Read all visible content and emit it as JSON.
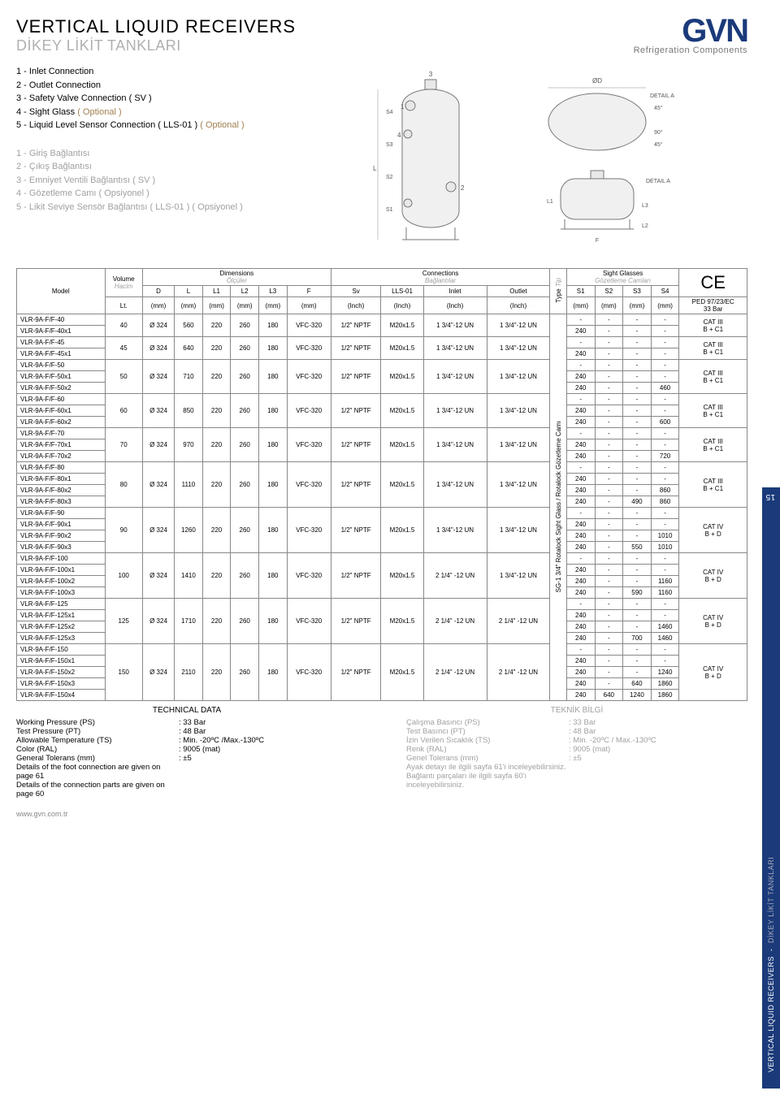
{
  "title_en": "VERTICAL LIQUID RECEIVERS",
  "title_tr": "DİKEY LİKİT TANKLARI",
  "logo_text": "GVN",
  "logo_sub": "Refrigeration Components",
  "conn_en": [
    "1 - Inlet Connection",
    "2 - Outlet Connection",
    "3 - Safety Valve Connection ( SV )",
    "4 - Sight Glass  ( Optional )",
    "5 - Liquid Level Sensor Connection ( LLS-01 )  ( Optional )"
  ],
  "conn_tr": [
    "1 - Giriş Bağlantısı",
    "2 - Çıkış Bağlantısı",
    "3 - Emniyet Ventili Bağlantısı ( SV )",
    "4 - Gözetleme Camı ( Opsiyonel )",
    "5 - Likit Seviye Sensör Bağlantısı ( LLS-01 ) ( Opsiyonel )"
  ],
  "hdr": {
    "model": "Model",
    "vol": "Volume",
    "vol_tr": "Hacim",
    "vol_u": "Lt.",
    "dim": "Dimensions",
    "dim_tr": "Ölçüler",
    "conn": "Connections",
    "conn_tr": "Bağlantılar",
    "type": "Type",
    "type_tr": "Tip",
    "sg": "Sight Glasses",
    "sg_tr": "Gözetleme Camları",
    "ce": "CE",
    "D": "D",
    "L": "L",
    "L1": "L1",
    "L2": "L2",
    "L3": "L3",
    "F": "F",
    "Sv": "Sv",
    "LLS": "LLS-01",
    "Inlet": "Inlet",
    "Outlet": "Outlet",
    "S1": "S1",
    "S2": "S2",
    "S3": "S3",
    "S4": "S4",
    "mm": "(mm)",
    "inch": "(Inch)",
    "ped": "PED 97/23/EC",
    "bar33": "33 Bar"
  },
  "type_label": "SG-1 3/4\" Rotalock Sight Glass / Rotalock Gözetleme Camı",
  "groups": [
    {
      "vol": "40",
      "D": "Ø 324",
      "L": "560",
      "L1": "220",
      "L2": "260",
      "L3": "180",
      "F": "VFC-320",
      "Sv": "1/2\" NPTF",
      "LLS": "M20x1.5",
      "In": "1 3/4\"-12 UN",
      "Out": "1 3/4\"-12 UN",
      "CE": "CAT III\nB + C1",
      "rows": [
        {
          "m": "VLR-9A-F/F-40",
          "s": [
            "-",
            "-",
            "-",
            "-"
          ]
        },
        {
          "m": "VLR-9A-F/F-40x1",
          "s": [
            "240",
            "-",
            "-",
            "-"
          ]
        }
      ]
    },
    {
      "vol": "45",
      "D": "Ø 324",
      "L": "640",
      "L1": "220",
      "L2": "260",
      "L3": "180",
      "F": "VFC-320",
      "Sv": "1/2\" NPTF",
      "LLS": "M20x1.5",
      "In": "1 3/4\"-12 UN",
      "Out": "1 3/4\"-12 UN",
      "CE": "CAT III\nB + C1",
      "rows": [
        {
          "m": "VLR-9A-F/F-45",
          "s": [
            "-",
            "-",
            "-",
            "-"
          ]
        },
        {
          "m": "VLR-9A-F/F-45x1",
          "s": [
            "240",
            "-",
            "-",
            "-"
          ]
        }
      ]
    },
    {
      "vol": "50",
      "D": "Ø 324",
      "L": "710",
      "L1": "220",
      "L2": "260",
      "L3": "180",
      "F": "VFC-320",
      "Sv": "1/2\" NPTF",
      "LLS": "M20x1.5",
      "In": "1 3/4\"-12 UN",
      "Out": "1 3/4\"-12 UN",
      "CE": "CAT III\nB + C1",
      "rows": [
        {
          "m": "VLR-9A-F/F-50",
          "s": [
            "-",
            "-",
            "-",
            "-"
          ]
        },
        {
          "m": "VLR-9A-F/F-50x1",
          "s": [
            "240",
            "-",
            "-",
            "-"
          ]
        },
        {
          "m": "VLR-9A-F/F-50x2",
          "s": [
            "240",
            "-",
            "-",
            "460"
          ]
        }
      ]
    },
    {
      "vol": "60",
      "D": "Ø 324",
      "L": "850",
      "L1": "220",
      "L2": "260",
      "L3": "180",
      "F": "VFC-320",
      "Sv": "1/2\" NPTF",
      "LLS": "M20x1.5",
      "In": "1 3/4\"-12 UN",
      "Out": "1 3/4\"-12 UN",
      "CE": "CAT III\nB + C1",
      "rows": [
        {
          "m": "VLR-9A-F/F-60",
          "s": [
            "-",
            "-",
            "-",
            "-"
          ]
        },
        {
          "m": "VLR-9A-F/F-60x1",
          "s": [
            "240",
            "-",
            "-",
            "-"
          ]
        },
        {
          "m": "VLR-9A-F/F-60x2",
          "s": [
            "240",
            "-",
            "-",
            "600"
          ]
        }
      ]
    },
    {
      "vol": "70",
      "D": "Ø 324",
      "L": "970",
      "L1": "220",
      "L2": "260",
      "L3": "180",
      "F": "VFC-320",
      "Sv": "1/2\" NPTF",
      "LLS": "M20x1.5",
      "In": "1 3/4\"-12 UN",
      "Out": "1 3/4\"-12 UN",
      "CE": "CAT III\nB + C1",
      "rows": [
        {
          "m": "VLR-9A-F/F-70",
          "s": [
            "-",
            "-",
            "-",
            "-"
          ]
        },
        {
          "m": "VLR-9A-F/F-70x1",
          "s": [
            "240",
            "-",
            "-",
            "-"
          ]
        },
        {
          "m": "VLR-9A-F/F-70x2",
          "s": [
            "240",
            "-",
            "-",
            "720"
          ]
        }
      ]
    },
    {
      "vol": "80",
      "D": "Ø 324",
      "L": "1110",
      "L1": "220",
      "L2": "260",
      "L3": "180",
      "F": "VFC-320",
      "Sv": "1/2\" NPTF",
      "LLS": "M20x1.5",
      "In": "1 3/4\"-12 UN",
      "Out": "1 3/4\"-12 UN",
      "CE": "CAT III\nB + C1",
      "rows": [
        {
          "m": "VLR-9A-F/F-80",
          "s": [
            "-",
            "-",
            "-",
            "-"
          ]
        },
        {
          "m": "VLR-9A-F/F-80x1",
          "s": [
            "240",
            "-",
            "-",
            "-"
          ]
        },
        {
          "m": "VLR-9A-F/F-80x2",
          "s": [
            "240",
            "-",
            "-",
            "860"
          ]
        },
        {
          "m": "VLR-9A-F/F-80x3",
          "s": [
            "240",
            "-",
            "490",
            "860"
          ]
        }
      ]
    },
    {
      "vol": "90",
      "D": "Ø 324",
      "L": "1260",
      "L1": "220",
      "L2": "260",
      "L3": "180",
      "F": "VFC-320",
      "Sv": "1/2\" NPTF",
      "LLS": "M20x1.5",
      "In": "1 3/4\"-12 UN",
      "Out": "1 3/4\"-12 UN",
      "CE": "CAT IV\nB + D",
      "rows": [
        {
          "m": "VLR-9A-F/F-90",
          "s": [
            "-",
            "-",
            "-",
            "-"
          ]
        },
        {
          "m": "VLR-9A-F/F-90x1",
          "s": [
            "240",
            "-",
            "-",
            "-"
          ]
        },
        {
          "m": "VLR-9A-F/F-90x2",
          "s": [
            "240",
            "-",
            "-",
            "1010"
          ]
        },
        {
          "m": "VLR-9A-F/F-90x3",
          "s": [
            "240",
            "-",
            "550",
            "1010"
          ]
        }
      ]
    },
    {
      "vol": "100",
      "D": "Ø 324",
      "L": "1410",
      "L1": "220",
      "L2": "260",
      "L3": "180",
      "F": "VFC-320",
      "Sv": "1/2\" NPTF",
      "LLS": "M20x1.5",
      "In": "2 1/4\" -12 UN",
      "Out": "1 3/4\"-12 UN",
      "CE": "CAT IV\nB + D",
      "rows": [
        {
          "m": "VLR-9A-F/F-100",
          "s": [
            "-",
            "-",
            "-",
            "-"
          ]
        },
        {
          "m": "VLR-9A-F/F-100x1",
          "s": [
            "240",
            "-",
            "-",
            "-"
          ]
        },
        {
          "m": "VLR-9A-F/F-100x2",
          "s": [
            "240",
            "-",
            "-",
            "1160"
          ]
        },
        {
          "m": "VLR-9A-F/F-100x3",
          "s": [
            "240",
            "-",
            "590",
            "1160"
          ]
        }
      ]
    },
    {
      "vol": "125",
      "D": "Ø 324",
      "L": "1710",
      "L1": "220",
      "L2": "260",
      "L3": "180",
      "F": "VFC-320",
      "Sv": "1/2\" NPTF",
      "LLS": "M20x1.5",
      "In": "2 1/4\" -12 UN",
      "Out": "2 1/4\" -12 UN",
      "CE": "CAT IV\nB + D",
      "rows": [
        {
          "m": "VLR-9A-F/F-125",
          "s": [
            "-",
            "-",
            "-",
            "-"
          ]
        },
        {
          "m": "VLR-9A-F/F-125x1",
          "s": [
            "240",
            "-",
            "-",
            "-"
          ]
        },
        {
          "m": "VLR-9A-F/F-125x2",
          "s": [
            "240",
            "-",
            "-",
            "1460"
          ]
        },
        {
          "m": "VLR-9A-F/F-125x3",
          "s": [
            "240",
            "-",
            "700",
            "1460"
          ]
        }
      ]
    },
    {
      "vol": "150",
      "D": "Ø 324",
      "L": "2110",
      "L1": "220",
      "L2": "260",
      "L3": "180",
      "F": "VFC-320",
      "Sv": "1/2\" NPTF",
      "LLS": "M20x1.5",
      "In": "2 1/4\" -12 UN",
      "Out": "2 1/4\" -12 UN",
      "CE": "CAT IV\nB + D",
      "rows": [
        {
          "m": "VLR-9A-F/F-150",
          "s": [
            "-",
            "-",
            "-",
            "-"
          ]
        },
        {
          "m": "VLR-9A-F/F-150x1",
          "s": [
            "240",
            "-",
            "-",
            "-"
          ]
        },
        {
          "m": "VLR-9A-F/F-150x2",
          "s": [
            "240",
            "-",
            "-",
            "1240"
          ]
        },
        {
          "m": "VLR-9A-F/F-150x3",
          "s": [
            "240",
            "-",
            "640",
            "1860"
          ]
        },
        {
          "m": "VLR-9A-F/F-150x4",
          "s": [
            "240",
            "640",
            "1240",
            "1860"
          ]
        }
      ]
    }
  ],
  "tech_en_h": "TECHNICAL DATA",
  "tech_tr_h": "TEKNİK BİLGİ",
  "tech_en": [
    [
      "Working Pressure (PS)",
      ": 33 Bar"
    ],
    [
      "Test Pressure (PT)",
      ": 48 Bar"
    ],
    [
      "Allowable Temperature (TS)",
      ": Min. -20ºC /Max.-130ºC"
    ],
    [
      "Color (RAL)",
      ": 9005 (mat)"
    ],
    [
      "General Tolerans (mm)",
      ": ±5"
    ],
    [
      "Details of the foot connection are given on page 61",
      ""
    ],
    [
      "Details of the connection parts are given on page 60",
      ""
    ]
  ],
  "tech_tr": [
    [
      "Çalışma Basıncı (PS)",
      ": 33 Bar"
    ],
    [
      "Test Basıncı (PT)",
      ": 48 Bar"
    ],
    [
      "İzin Verilen Sıcaklık (TS)",
      ": Min. -20ºC / Max.-130ºC"
    ],
    [
      "Renk (RAL)",
      ": 9005 (mat)"
    ],
    [
      "Genel Tolerans (mm)",
      ": ±5"
    ],
    [
      "Ayak detayı ile ilgili sayfa 61'i inceleyebilirsiniz.",
      ""
    ],
    [
      "Bağlantı parçaları ile ilgili sayfa 60'ı inceleyebilirsiniz.",
      ""
    ]
  ],
  "side_en": "VERTICAL LIQUID RECEIVERS",
  "side_tr": "DİKEY LİKİT TANKLARI",
  "page_num": "15",
  "footer": "www.gvn.com.tr"
}
